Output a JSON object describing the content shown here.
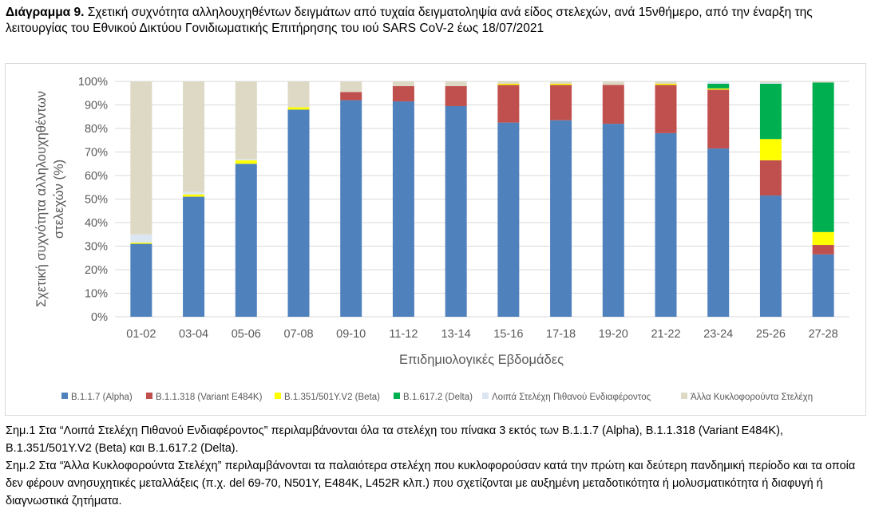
{
  "caption": {
    "label": "Διάγραμμα 9.",
    "text": "Σχετική συχνότητα αλληλουχηθέντων δειγμάτων από τυχαία δειγματοληψία ανά είδος στελεχών, ανά 15νθήμερο, από την έναρξη της λειτουργίας του Εθνικού Δικτύου Γονιδιωματικής Επιτήρησης του ιού SARS CoV-2 έως 18/07/2021"
  },
  "chart_data": {
    "type": "bar",
    "stacked": true,
    "categories": [
      "01-02",
      "03-04",
      "05-06",
      "07-08",
      "09-10",
      "11-12",
      "13-14",
      "15-16",
      "17-18",
      "19-20",
      "21-22",
      "23-24",
      "25-26",
      "27-28"
    ],
    "series": [
      {
        "name": "B.1.1.7 (Alpha)",
        "color": "#4f81bd",
        "values": [
          31,
          51,
          65,
          88,
          92,
          91.5,
          89.5,
          82.5,
          83.5,
          82,
          78,
          71.5,
          51.5,
          26.5
        ]
      },
      {
        "name": "B.1.1.318 (Variant E484K)",
        "color": "#c0504d",
        "values": [
          0,
          0,
          0,
          0,
          3.5,
          6.5,
          8.5,
          16,
          15,
          16.5,
          20.5,
          25,
          15,
          4
        ]
      },
      {
        "name": "B.1.351/501Y.V2 (Beta)",
        "color": "#ffff00",
        "values": [
          0.5,
          1,
          1.5,
          1,
          0,
          0,
          0,
          0.5,
          0.5,
          0,
          0.5,
          0.5,
          9,
          5.5
        ]
      },
      {
        "name": "B.1.617.2 (Delta)",
        "color": "#00b050",
        "values": [
          0,
          0,
          0,
          0,
          0,
          0,
          0,
          0,
          0,
          0,
          0,
          2,
          23.5,
          63.5
        ]
      },
      {
        "name": "Λοιπά Στελέχη Πιθανού Ενδιαφέροντος",
        "color": "#dce6f2",
        "values": [
          3.5,
          1,
          0.5,
          0,
          0,
          0,
          0,
          0,
          0,
          0,
          0,
          1,
          0.5,
          0
        ]
      },
      {
        "name": "Άλλα Κυκλοφορούντα Στελέχη",
        "color": "#ddd9c4",
        "values": [
          65,
          47,
          33,
          11,
          4.5,
          2,
          2,
          1,
          1,
          1.5,
          1,
          0,
          0.5,
          0.5
        ]
      }
    ],
    "yticks": [
      "0%",
      "10%",
      "20%",
      "30%",
      "40%",
      "50%",
      "60%",
      "70%",
      "80%",
      "90%",
      "100%"
    ],
    "ylim": [
      0,
      100
    ],
    "ylabel": "Σχετική συχνότητα αλληλουχηθέντων στελεχών (%)",
    "xlabel": "Επιδημιολογικές Εβδομάδες",
    "legend_position": "bottom"
  },
  "notes": [
    "Σημ.1 Στα “Λοιπά Στελέχη Πιθανού Ενδιαφέροντος” περιλαμβάνονται όλα τα στελέχη του πίνακα 3 εκτός των B.1.1.7 (Alpha), B.1.1.318 (Variant E484K), B.1.351/501Y.V2 (Beta) και B.1.617.2 (Delta).",
    "Σημ.2 Στα “Άλλα Κυκλοφορούντα Στελέχη” περιλαμβάνονται τα παλαιότερα στελέχη που κυκλοφορούσαν κατά την πρώτη και δεύτερη πανδημική περίοδο και τα οποία δεν φέρουν ανησυχητικές μεταλλάξεις (π.χ. del 69-70, N501Y, E484K, L452R κλπ.) που σχετίζονται με αυξημένη μεταδοτικότητα ή μολυσματικότητα ή διαφυγή ή διαγνωστικά ζητήματα."
  ]
}
